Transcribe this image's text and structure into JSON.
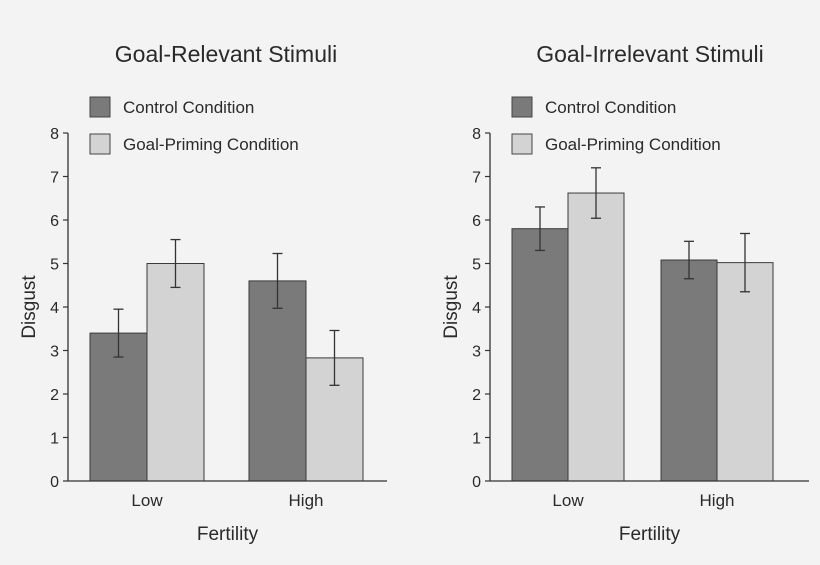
{
  "chart_data": [
    {
      "type": "bar",
      "title": "Goal-Relevant Stimuli",
      "xlabel": "Fertility",
      "ylabel": "Disgust",
      "ylim": [
        0,
        8
      ],
      "yticks": [
        "0",
        "1",
        "2",
        "3",
        "4",
        "5",
        "6",
        "7",
        "8"
      ],
      "categories": [
        "Low",
        "High"
      ],
      "legend_position": "top-left",
      "series": [
        {
          "name": "Control Condition",
          "color": "#7a7a7a",
          "values": [
            3.4,
            4.6
          ],
          "error": [
            0.55,
            0.63
          ]
        },
        {
          "name": "Goal-Priming Condition",
          "color": "#d3d3d3",
          "values": [
            5.0,
            2.83
          ],
          "error": [
            0.55,
            0.63
          ]
        }
      ]
    },
    {
      "type": "bar",
      "title": "Goal-Irrelevant Stimuli",
      "xlabel": "Fertility",
      "ylabel": "Disgust",
      "ylim": [
        0,
        8
      ],
      "yticks": [
        "0",
        "1",
        "2",
        "3",
        "4",
        "5",
        "6",
        "7",
        "8"
      ],
      "categories": [
        "Low",
        "High"
      ],
      "legend_position": "top-left",
      "series": [
        {
          "name": "Control Condition",
          "color": "#7a7a7a",
          "values": [
            5.8,
            5.08
          ],
          "error": [
            0.5,
            0.43
          ]
        },
        {
          "name": "Goal-Priming Condition",
          "color": "#d3d3d3",
          "values": [
            6.62,
            5.02
          ],
          "error": [
            0.58,
            0.67
          ]
        }
      ]
    }
  ]
}
